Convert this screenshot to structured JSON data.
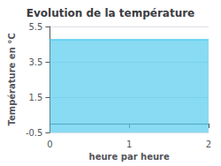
{
  "chart_data": {
    "type": "area",
    "title": "Evolution de la température",
    "xlabel": "heure par heure",
    "ylabel": "Température en °C",
    "x": [
      0,
      2
    ],
    "values": [
      4.75,
      4.75
    ],
    "color": "#55ccee",
    "xlim": [
      0,
      2
    ],
    "xticks": [
      0,
      1,
      2
    ],
    "ylim": [
      -0.5,
      5.5
    ],
    "yticks": [
      -0.5,
      1.5,
      3.5,
      5.5
    ],
    "grid": true
  }
}
